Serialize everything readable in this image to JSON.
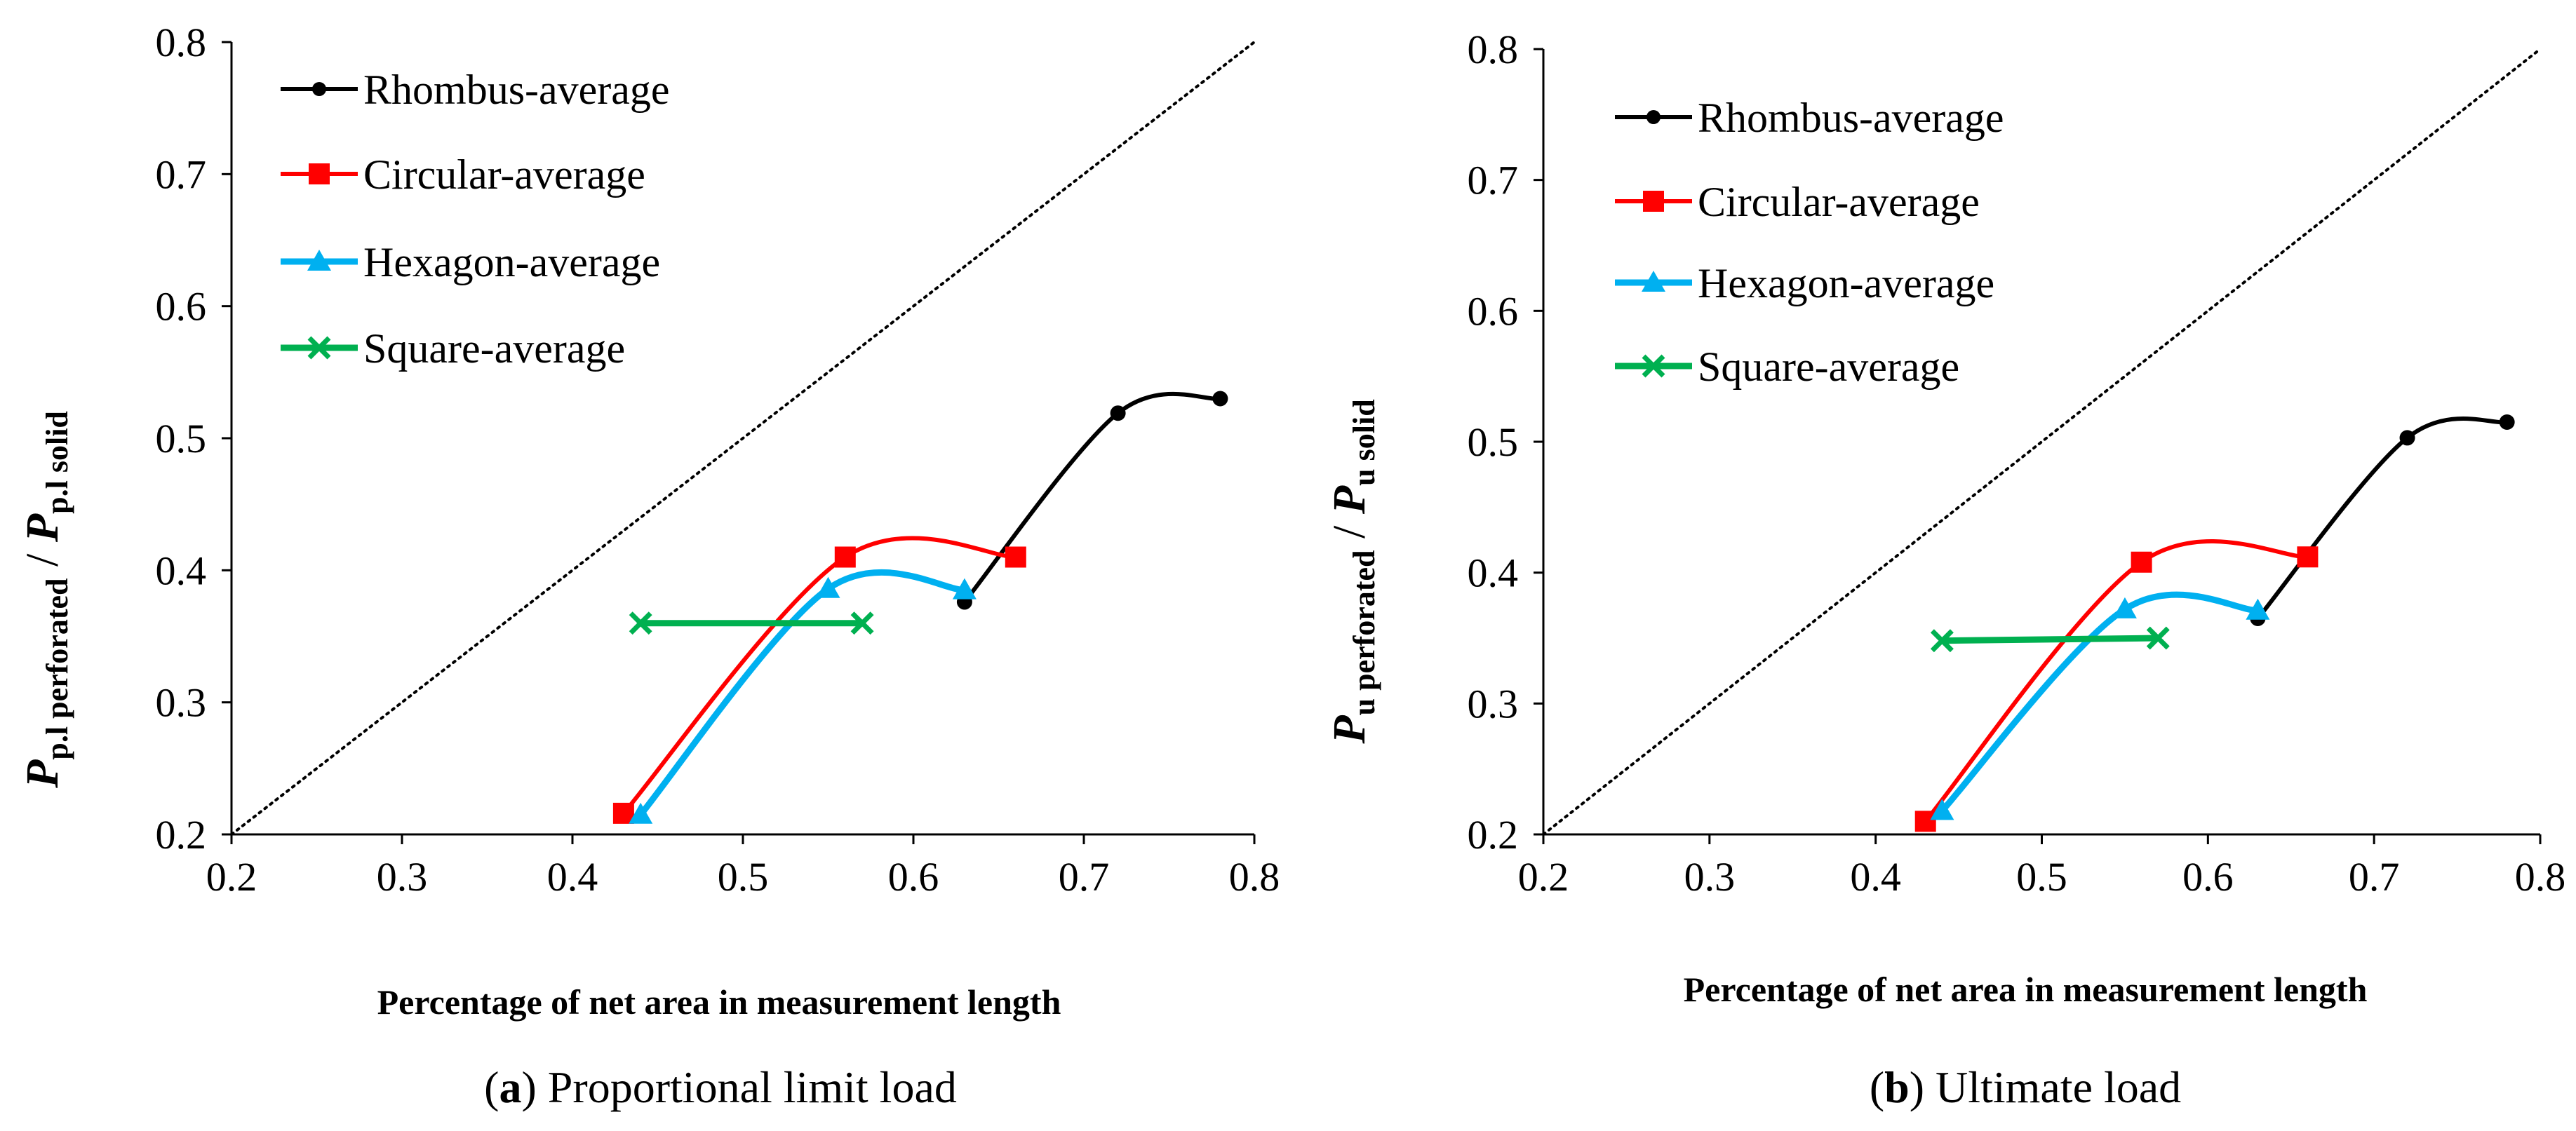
{
  "chart_data": [
    {
      "type": "line",
      "id": "a",
      "caption_prefix": "(",
      "caption_letter": "a",
      "caption_suffix": ") Proportional limit load",
      "xlabel": "Percentage of net area in measurement length",
      "ylabel_main": "P",
      "ylabel_sub1": "p.l perforated",
      "ylabel_sep": " / ",
      "ylabel_sub2": "p.l solid",
      "xlim": [
        0.2,
        0.8
      ],
      "ylim": [
        0.2,
        0.8
      ],
      "xticks": [
        "0.2",
        "0.3",
        "0.4",
        "0.5",
        "0.6",
        "0.7",
        "0.8"
      ],
      "yticks": [
        "0.2",
        "0.3",
        "0.4",
        "0.5",
        "0.6",
        "0.7",
        "0.8"
      ],
      "diagonal": true,
      "series": [
        {
          "name": "Rhombus-average",
          "color": "#000000",
          "marker": "circle",
          "x": [
            0.63,
            0.72,
            0.78
          ],
          "y": [
            0.376,
            0.519,
            0.53
          ]
        },
        {
          "name": "Circular-average",
          "color": "#ff0000",
          "marker": "square",
          "x": [
            0.43,
            0.56,
            0.66
          ],
          "y": [
            0.216,
            0.41,
            0.41
          ]
        },
        {
          "name": "Hexagon-average",
          "color": "#00b0f0",
          "marker": "triangle",
          "x": [
            0.44,
            0.55,
            0.63
          ],
          "y": [
            0.215,
            0.386,
            0.385
          ]
        },
        {
          "name": "Square-average",
          "color": "#00b050",
          "marker": "x",
          "x": [
            0.44,
            0.57
          ],
          "y": [
            0.36,
            0.36
          ]
        }
      ]
    },
    {
      "type": "line",
      "id": "b",
      "caption_prefix": "(",
      "caption_letter": "b",
      "caption_suffix": ") Ultimate load",
      "xlabel": "Percentage of net area in measurement length",
      "ylabel_main": "P",
      "ylabel_sub1": "u perforated",
      "ylabel_sep": " / ",
      "ylabel_sub2": "u solid",
      "xlim": [
        0.2,
        0.8
      ],
      "ylim": [
        0.2,
        0.8
      ],
      "xticks": [
        "0.2",
        "0.3",
        "0.4",
        "0.5",
        "0.6",
        "0.7",
        "0.8"
      ],
      "yticks": [
        "0.2",
        "0.3",
        "0.4",
        "0.5",
        "0.6",
        "0.7",
        "0.8"
      ],
      "diagonal": true,
      "series": [
        {
          "name": "Rhombus-average",
          "color": "#000000",
          "marker": "circle",
          "x": [
            0.63,
            0.72,
            0.78
          ],
          "y": [
            0.365,
            0.503,
            0.515
          ]
        },
        {
          "name": "Circular-average",
          "color": "#ff0000",
          "marker": "square",
          "x": [
            0.43,
            0.56,
            0.66
          ],
          "y": [
            0.21,
            0.408,
            0.412
          ]
        },
        {
          "name": "Hexagon-average",
          "color": "#00b0f0",
          "marker": "triangle",
          "x": [
            0.44,
            0.55,
            0.63
          ],
          "y": [
            0.218,
            0.372,
            0.371
          ]
        },
        {
          "name": "Square-average",
          "color": "#00b050",
          "marker": "x",
          "x": [
            0.44,
            0.57
          ],
          "y": [
            0.348,
            0.35
          ]
        }
      ]
    }
  ]
}
